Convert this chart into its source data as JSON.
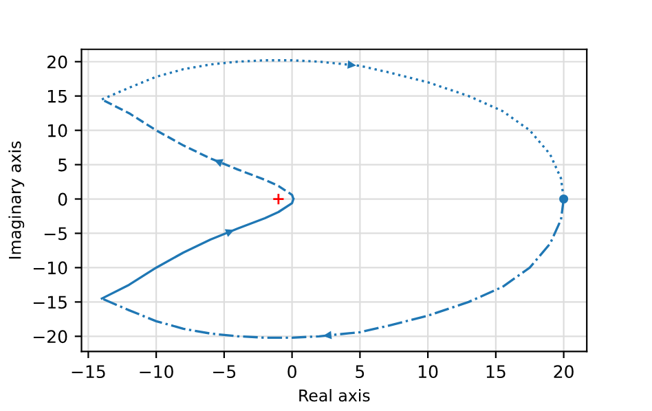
{
  "chart_data": {
    "type": "line",
    "xlabel": "Real axis",
    "ylabel": "Imaginary axis",
    "xlim": [
      -15.5,
      21.7
    ],
    "ylim": [
      -22.2,
      21.8
    ],
    "xticks": [
      {
        "value": -15,
        "label": "−15"
      },
      {
        "value": -10,
        "label": "−10"
      },
      {
        "value": -5,
        "label": "−5"
      },
      0,
      5,
      10,
      15,
      20
    ],
    "yticks": [
      {
        "value": -20,
        "label": "−20"
      },
      {
        "value": -15,
        "label": "−15"
      },
      {
        "value": -10,
        "label": "−10"
      },
      {
        "value": -5,
        "label": "−5"
      },
      0,
      5,
      10,
      15,
      20
    ],
    "grid": true,
    "series": [
      {
        "line_style": "dashdot",
        "color": "#1f77b4",
        "x": [
          20,
          19.8,
          19,
          17.5,
          15.5,
          13,
          10,
          7,
          5,
          2,
          0,
          -2,
          -4,
          -6,
          -8,
          -10,
          -12,
          -14
        ],
        "values": [
          0,
          -3,
          -6.5,
          -10,
          -12.8,
          -15,
          -17,
          -18.5,
          -19.4,
          -20,
          -20.2,
          -20.2,
          -20,
          -19.6,
          -18.9,
          -17.8,
          -16.2,
          -14.5
        ]
      },
      {
        "line_style": "solid",
        "color": "#1f77b4",
        "x": [
          -14,
          -12,
          -10,
          -8,
          -6,
          -4,
          -2,
          -1,
          0,
          0.1
        ],
        "values": [
          -14.5,
          -12.5,
          -10,
          -7.8,
          -5.9,
          -4.3,
          -2.8,
          -1.9,
          -0.6,
          0
        ]
      },
      {
        "line_style": "dashed",
        "color": "#1f77b4",
        "x": [
          0.1,
          0,
          -1,
          -2,
          -4,
          -6,
          -8,
          -10,
          -12,
          -14
        ],
        "values": [
          0,
          0.6,
          1.9,
          2.8,
          4.3,
          5.9,
          7.8,
          10,
          12.5,
          14.5
        ]
      },
      {
        "line_style": "dotted",
        "color": "#1f77b4",
        "x": [
          -14,
          -12,
          -10,
          -8,
          -6,
          -4,
          -2,
          0,
          2,
          5,
          7,
          10,
          13,
          15.5,
          17.5,
          19,
          19.8,
          20
        ],
        "values": [
          14.5,
          16.2,
          17.8,
          18.9,
          19.6,
          20,
          20.2,
          20.2,
          20,
          19.4,
          18.5,
          17,
          15,
          12.8,
          10,
          6.5,
          3,
          0
        ]
      },
      {
        "type": "scatter",
        "marker": "circle",
        "color": "#1f77b4",
        "x": [
          20
        ],
        "values": [
          0
        ]
      },
      {
        "type": "scatter",
        "marker": "cross",
        "color": "#ff0000",
        "x": [
          -1
        ],
        "values": [
          0
        ]
      }
    ]
  }
}
